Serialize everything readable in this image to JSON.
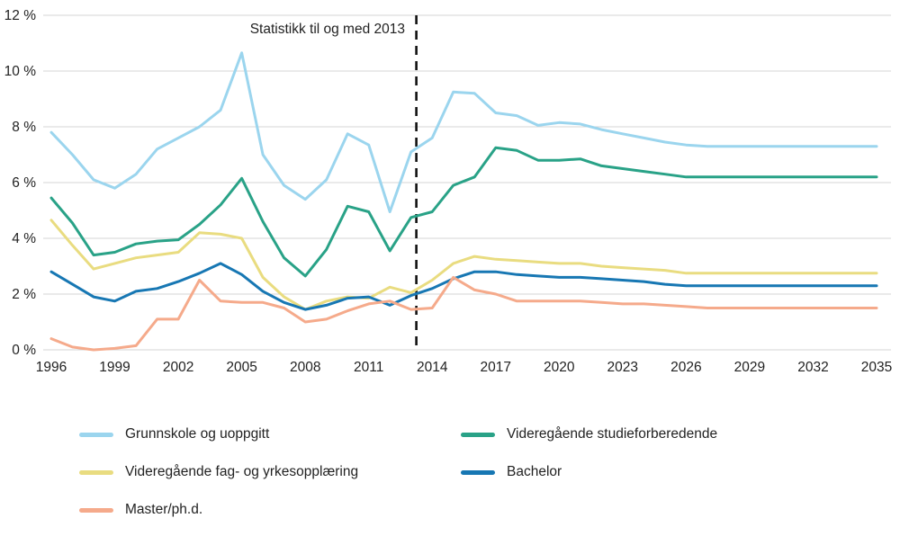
{
  "style": {
    "background": "#FFFFFF",
    "grid_color": "#D5D5D5",
    "text_color": "#222222",
    "divider_color": "#111111"
  },
  "annotation": "Statistikk til og med 2013",
  "chart_data": {
    "type": "line",
    "title": "",
    "xlabel": "",
    "ylabel": "",
    "ylim": [
      0,
      12
    ],
    "x_range": [
      1996,
      2035
    ],
    "grid": "horizontal",
    "legend_position": "bottom",
    "annotation": "Statistikk til og med 2013",
    "divider_x": 2013.25,
    "ytick_suffix": " %",
    "yticks": [
      0,
      2,
      4,
      6,
      8,
      10,
      12
    ],
    "xticks": [
      1996,
      1999,
      2002,
      2005,
      2008,
      2011,
      2014,
      2017,
      2020,
      2023,
      2026,
      2029,
      2032,
      2035
    ],
    "years": [
      1996,
      1997,
      1998,
      1999,
      2000,
      2001,
      2002,
      2003,
      2004,
      2005,
      2006,
      2007,
      2008,
      2009,
      2010,
      2011,
      2012,
      2013,
      2014,
      2015,
      2016,
      2017,
      2018,
      2019,
      2020,
      2021,
      2022,
      2023,
      2024,
      2025,
      2026,
      2027,
      2028,
      2029,
      2030,
      2031,
      2032,
      2033,
      2034,
      2035
    ],
    "series": [
      {
        "id": "grunnskole-og-uoppgitt",
        "name": "Grunnskole og uoppgitt",
        "color": "#9BD5EE",
        "values": [
          7.8,
          7.0,
          6.1,
          5.8,
          6.3,
          7.2,
          7.6,
          8.0,
          8.6,
          10.65,
          7.0,
          5.9,
          5.4,
          6.1,
          7.75,
          7.35,
          4.95,
          7.1,
          7.6,
          9.25,
          9.2,
          8.5,
          8.4,
          8.05,
          8.15,
          8.1,
          7.9,
          7.75,
          7.6,
          7.45,
          7.35,
          7.3,
          7.3,
          7.3,
          7.3,
          7.3,
          7.3,
          7.3,
          7.3,
          7.3
        ]
      },
      {
        "id": "videregaende-studieforberedende",
        "name": "Videregående studieforberedende",
        "color": "#29A287",
        "values": [
          5.45,
          4.55,
          3.4,
          3.5,
          3.8,
          3.9,
          3.95,
          4.5,
          5.2,
          6.15,
          4.6,
          3.3,
          2.65,
          3.6,
          5.15,
          4.95,
          3.55,
          4.75,
          4.95,
          5.9,
          6.2,
          7.25,
          7.15,
          6.8,
          6.8,
          6.85,
          6.6,
          6.5,
          6.4,
          6.3,
          6.2,
          6.2,
          6.2,
          6.2,
          6.2,
          6.2,
          6.2,
          6.2,
          6.2,
          6.2
        ]
      },
      {
        "id": "videregaende-fag-og-yrkesopplaering",
        "name": "Videregående fag- og yrkesopplæring",
        "color": "#E9DC80",
        "values": [
          4.65,
          3.75,
          2.9,
          3.1,
          3.3,
          3.4,
          3.5,
          4.2,
          4.15,
          4.0,
          2.6,
          1.9,
          1.45,
          1.75,
          1.9,
          1.85,
          2.25,
          2.05,
          2.5,
          3.1,
          3.35,
          3.25,
          3.2,
          3.15,
          3.1,
          3.1,
          3.0,
          2.95,
          2.9,
          2.85,
          2.75,
          2.75,
          2.75,
          2.75,
          2.75,
          2.75,
          2.75,
          2.75,
          2.75,
          2.75
        ]
      },
      {
        "id": "bachelor",
        "name": "Bachelor",
        "color": "#1777B3",
        "values": [
          2.8,
          2.35,
          1.9,
          1.75,
          2.1,
          2.2,
          2.45,
          2.75,
          3.1,
          2.7,
          2.1,
          1.7,
          1.45,
          1.6,
          1.85,
          1.9,
          1.6,
          1.95,
          2.2,
          2.55,
          2.8,
          2.8,
          2.7,
          2.65,
          2.6,
          2.6,
          2.55,
          2.5,
          2.45,
          2.35,
          2.3,
          2.3,
          2.3,
          2.3,
          2.3,
          2.3,
          2.3,
          2.3,
          2.3,
          2.3
        ]
      },
      {
        "id": "master-phd",
        "name": "Master/ph.d.",
        "color": "#F5AA8B",
        "values": [
          0.4,
          0.1,
          0.0,
          0.05,
          0.15,
          1.1,
          1.1,
          2.5,
          1.75,
          1.7,
          1.7,
          1.5,
          1.0,
          1.1,
          1.4,
          1.65,
          1.75,
          1.45,
          1.5,
          2.6,
          2.15,
          2.0,
          1.75,
          1.75,
          1.75,
          1.75,
          1.7,
          1.65,
          1.65,
          1.6,
          1.55,
          1.5,
          1.5,
          1.5,
          1.5,
          1.5,
          1.5,
          1.5,
          1.5,
          1.5
        ]
      }
    ]
  }
}
